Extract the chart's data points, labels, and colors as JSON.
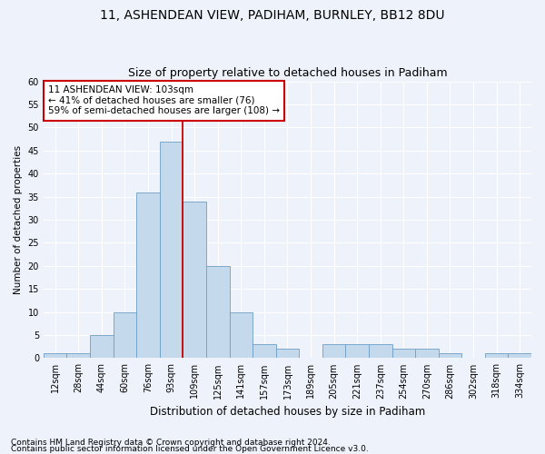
{
  "title1": "11, ASHENDEAN VIEW, PADIHAM, BURNLEY, BB12 8DU",
  "title2": "Size of property relative to detached houses in Padiham",
  "xlabel": "Distribution of detached houses by size in Padiham",
  "ylabel": "Number of detached properties",
  "categories": [
    "12sqm",
    "28sqm",
    "44sqm",
    "60sqm",
    "76sqm",
    "93sqm",
    "109sqm",
    "125sqm",
    "141sqm",
    "157sqm",
    "173sqm",
    "189sqm",
    "205sqm",
    "221sqm",
    "237sqm",
    "254sqm",
    "270sqm",
    "286sqm",
    "302sqm",
    "318sqm",
    "334sqm"
  ],
  "values": [
    1,
    1,
    5,
    10,
    36,
    47,
    34,
    20,
    10,
    3,
    2,
    0,
    3,
    3,
    3,
    2,
    2,
    1,
    0,
    1,
    1
  ],
  "bar_color": "#c5d9ed",
  "bar_edge_color": "#6e9ec5",
  "vline_color": "#cc0000",
  "vline_position": 6,
  "annotation_text": "11 ASHENDEAN VIEW: 103sqm\n← 41% of detached houses are smaller (76)\n59% of semi-detached houses are larger (108) →",
  "annotation_box_color": "#ffffff",
  "annotation_box_edge_color": "#cc0000",
  "ylim": [
    0,
    60
  ],
  "yticks": [
    0,
    5,
    10,
    15,
    20,
    25,
    30,
    35,
    40,
    45,
    50,
    55,
    60
  ],
  "background_color": "#eef2fa",
  "grid_color": "#ffffff",
  "footer1": "Contains HM Land Registry data © Crown copyright and database right 2024.",
  "footer2": "Contains public sector information licensed under the Open Government Licence v3.0.",
  "title1_fontsize": 10,
  "title2_fontsize": 9,
  "xlabel_fontsize": 8.5,
  "ylabel_fontsize": 7.5,
  "tick_fontsize": 7,
  "annotation_fontsize": 7.5,
  "footer_fontsize": 6.5
}
